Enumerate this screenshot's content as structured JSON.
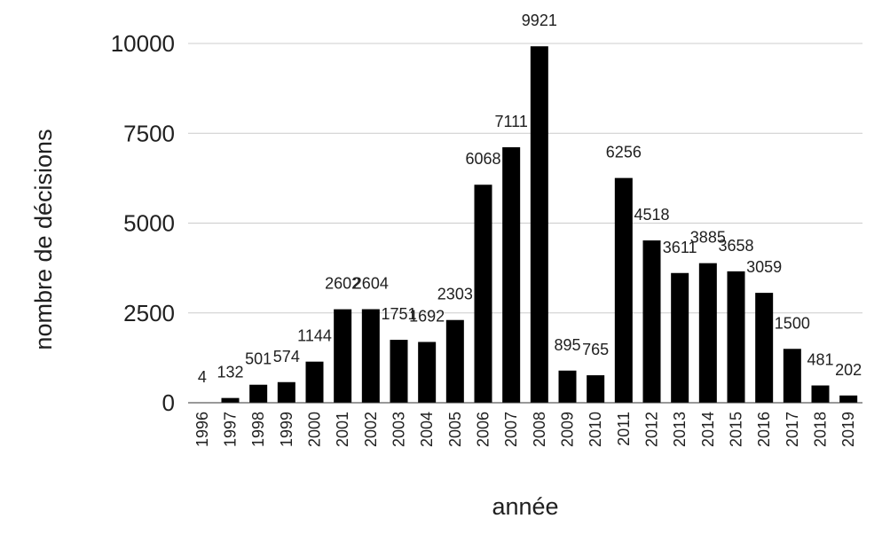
{
  "chart_data": {
    "type": "bar",
    "title": "",
    "xlabel": "année",
    "ylabel": "nombre de décisions",
    "categories": [
      "1996",
      "1997",
      "1998",
      "1999",
      "2000",
      "2001",
      "2002",
      "2003",
      "2004",
      "2005",
      "2006",
      "2007",
      "2008",
      "2009",
      "2010",
      "2011",
      "2012",
      "2013",
      "2014",
      "2015",
      "2016",
      "2017",
      "2018",
      "2019"
    ],
    "values": [
      4,
      132,
      501,
      574,
      1144,
      2602,
      2604,
      1751,
      1692,
      2303,
      6068,
      7111,
      9921,
      895,
      765,
      6256,
      4518,
      3611,
      3885,
      3658,
      3059,
      1500,
      481,
      202
    ],
    "data_labels": [
      "4",
      "132",
      "501",
      "574",
      "1144",
      "2602",
      "2604",
      "1751",
      "1692",
      "2303",
      "6068",
      "7111",
      "9921",
      "895",
      "765",
      "6256",
      "4518",
      "3611",
      "3885",
      "3658",
      "3059",
      "1500",
      "481",
      "202"
    ],
    "y_ticks": [
      "0",
      "2500",
      "5000",
      "7500",
      "10000"
    ],
    "ylim": [
      0,
      10000
    ],
    "grid": true,
    "bar_color": "#000000",
    "grid_color": "#cccccc"
  }
}
